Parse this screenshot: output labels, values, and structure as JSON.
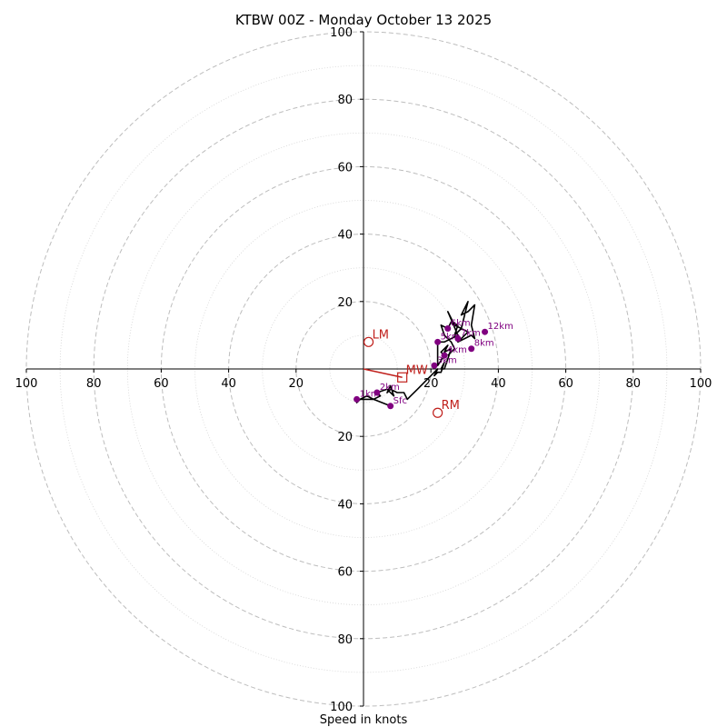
{
  "chart_data": {
    "type": "hodograph",
    "title": "KTBW 00Z - Monday October 13 2025",
    "xlabel": "Speed in knots",
    "units": "knots",
    "max_speed": 100,
    "ring_step_major": 20,
    "ring_step_minor": 10,
    "axis_ticks": {
      "right": [
        "20",
        "40",
        "60",
        "80",
        "100"
      ],
      "left": [
        "100",
        "80",
        "60",
        "40",
        "20"
      ],
      "top": [
        "100",
        "80",
        "60",
        "40",
        "20"
      ],
      "bottom": [
        "20",
        "40",
        "60",
        "80",
        "100"
      ]
    },
    "hodograph_trace": [
      [
        8,
        -11
      ],
      [
        3,
        -9
      ],
      [
        -1,
        -9
      ],
      [
        -2,
        -10
      ],
      [
        -1,
        -9
      ],
      [
        1,
        -8
      ],
      [
        3,
        -9
      ],
      [
        5,
        -8
      ],
      [
        4,
        -7
      ],
      [
        7,
        -6
      ],
      [
        9,
        -8
      ],
      [
        8,
        -5
      ],
      [
        7,
        -7
      ],
      [
        8,
        -6
      ],
      [
        10,
        -7
      ],
      [
        12,
        -7
      ],
      [
        13,
        -9
      ],
      [
        14,
        -8
      ],
      [
        16,
        -6
      ],
      [
        18,
        -4
      ],
      [
        20,
        -2
      ],
      [
        21,
        -1
      ],
      [
        22,
        0
      ],
      [
        21,
        -2
      ],
      [
        22,
        -1
      ],
      [
        23,
        -1
      ],
      [
        24,
        2
      ],
      [
        23,
        0
      ],
      [
        24,
        0
      ],
      [
        25,
        3
      ],
      [
        26,
        6
      ],
      [
        24,
        5
      ],
      [
        25,
        7
      ],
      [
        23,
        5
      ],
      [
        24,
        4
      ],
      [
        22,
        1
      ],
      [
        22,
        8
      ],
      [
        24,
        8
      ],
      [
        26,
        9
      ],
      [
        28,
        10
      ],
      [
        25,
        17
      ],
      [
        27,
        13
      ],
      [
        29,
        12
      ],
      [
        31,
        11
      ],
      [
        28,
        8
      ],
      [
        30,
        9
      ],
      [
        32,
        10
      ],
      [
        33,
        9
      ],
      [
        32,
        13
      ],
      [
        33,
        19
      ],
      [
        31,
        17
      ],
      [
        29,
        16
      ],
      [
        31,
        20
      ],
      [
        29,
        12
      ],
      [
        27,
        10
      ],
      [
        28,
        13
      ],
      [
        26,
        14
      ],
      [
        25,
        12
      ],
      [
        23,
        13
      ],
      [
        24,
        10
      ],
      [
        26,
        8
      ],
      [
        27,
        6
      ],
      [
        25,
        4
      ]
    ],
    "height_markers": [
      {
        "label": "Sfc",
        "u": 8,
        "v": -11
      },
      {
        "label": "1km",
        "u": -2,
        "v": -9
      },
      {
        "label": "2km",
        "u": 4,
        "v": -7
      },
      {
        "label": "3km",
        "u": 21,
        "v": 1
      },
      {
        "label": "4km",
        "u": 24,
        "v": 4
      },
      {
        "label": "5km",
        "u": 22,
        "v": 8
      },
      {
        "label": "6km",
        "u": 25,
        "v": 12
      },
      {
        "label": "7km",
        "u": 28,
        "v": 9
      },
      {
        "label": "8km",
        "u": 32,
        "v": 6
      },
      {
        "label": "12km",
        "u": 36,
        "v": 11
      }
    ],
    "storm_motion": {
      "LM": {
        "label": "LM",
        "u": 1.5,
        "v": 8
      },
      "RM": {
        "label": "RM",
        "u": 22,
        "v": -13
      },
      "MW": {
        "label": "MW",
        "u": 11.5,
        "v": -2.5
      }
    },
    "mean_wind_vector": {
      "from": [
        0,
        0
      ],
      "to": [
        11.5,
        -2.5
      ]
    }
  },
  "colors": {
    "trace": "#000000",
    "markers": "#800080",
    "storm_motion": "#c0201c",
    "grid": "#bdbdbd"
  }
}
